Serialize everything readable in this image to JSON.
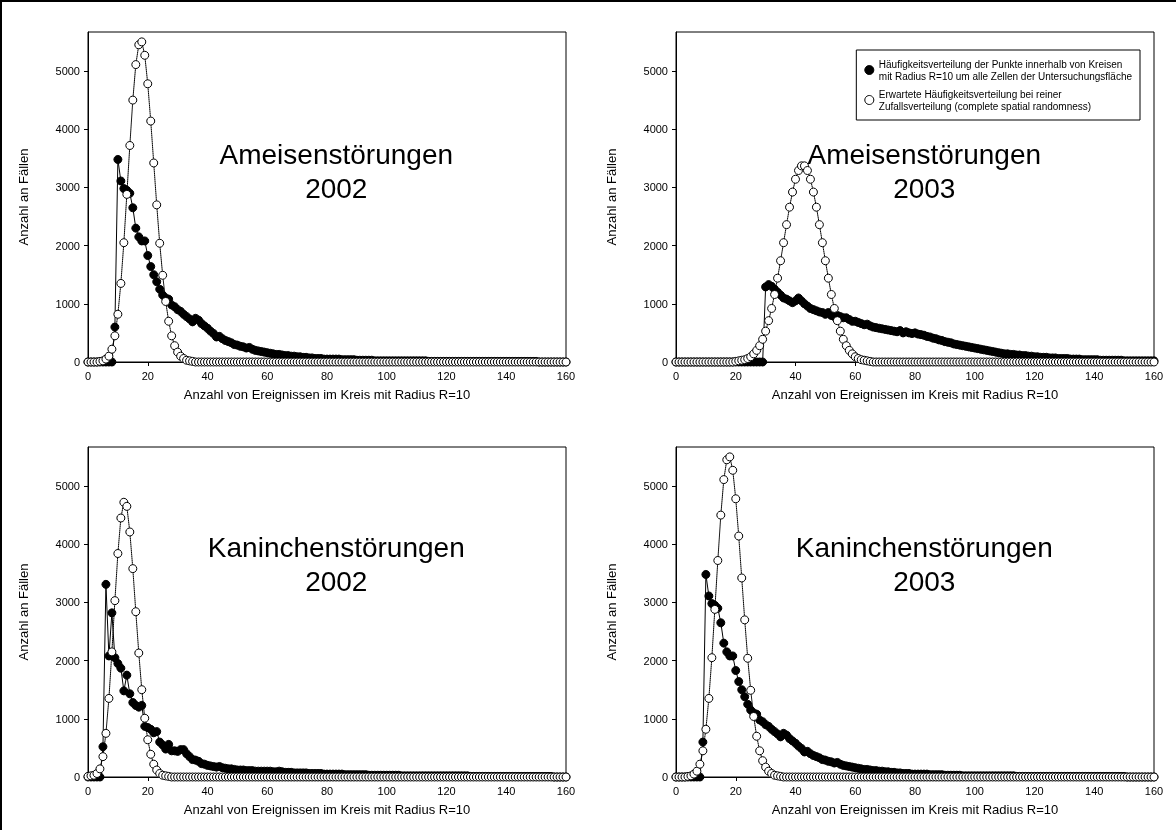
{
  "chart_data": [
    {
      "type": "line",
      "title": "Ameisenstörungen\n2002",
      "xlabel": "Anzahl von Ereignissen im Kreis mit Radius R=10",
      "ylabel": "Anzahl an Fällen",
      "xlim": [
        0,
        160
      ],
      "xticks": [
        0,
        20,
        40,
        60,
        80,
        100,
        120,
        140,
        160
      ],
      "ylim": [
        0,
        5670
      ],
      "yticks": [
        0,
        1000,
        2000,
        3000,
        4000,
        5000
      ],
      "grid": false,
      "legend": false,
      "marker": "circle",
      "x": [
        0,
        1,
        2,
        3,
        4,
        5,
        6,
        7,
        8,
        9,
        10,
        11,
        12,
        13,
        14,
        15,
        16,
        17,
        18,
        19,
        20,
        21,
        22,
        23,
        24,
        25,
        26,
        27,
        28,
        29,
        30,
        31,
        32,
        33,
        34,
        35,
        36,
        37,
        38,
        39,
        40,
        41,
        42,
        43,
        44,
        45,
        46,
        47,
        48,
        49,
        50,
        51,
        52,
        53,
        54,
        55,
        56,
        57,
        58,
        59,
        60,
        61,
        62,
        63,
        64,
        65,
        66,
        67,
        68,
        69,
        70,
        71,
        72,
        73,
        74,
        75,
        76,
        77,
        78,
        79,
        80,
        81,
        82,
        83,
        84,
        85,
        86,
        87,
        88,
        89,
        90,
        91,
        92,
        93,
        94,
        95,
        96,
        97,
        98,
        99,
        100,
        101,
        102,
        103,
        104,
        105,
        106,
        107,
        108,
        109,
        110,
        111,
        112,
        113,
        114,
        115,
        116,
        117,
        118,
        119,
        120,
        121,
        122,
        123,
        124,
        125,
        126,
        127,
        128,
        129,
        130,
        131,
        132,
        133,
        134,
        135,
        136,
        137,
        138,
        139,
        140,
        141,
        142,
        143,
        144,
        145,
        146,
        147,
        148,
        149,
        150,
        151,
        152,
        153,
        154,
        155,
        156,
        157,
        158,
        159,
        160
      ],
      "series": [
        {
          "color": "#000000",
          "line_style": "solid",
          "values": [
            0,
            0,
            0,
            0,
            0,
            0,
            0,
            0,
            0,
            600,
            3480,
            3110,
            2980,
            2950,
            2900,
            2650,
            2300,
            2150,
            2080,
            2080,
            1830,
            1640,
            1500,
            1380,
            1250,
            1150,
            1100,
            1080,
            980,
            950,
            900,
            870,
            820,
            780,
            740,
            690,
            750,
            720,
            660,
            620,
            580,
            530,
            490,
            430,
            440,
            400,
            370,
            350,
            330,
            300,
            290,
            270,
            260,
            240,
            250,
            220,
            200,
            190,
            180,
            170,
            160,
            150,
            140,
            130,
            130,
            120,
            110,
            110,
            100,
            100,
            90,
            90,
            80,
            80,
            70,
            70,
            60,
            60,
            60,
            50,
            50,
            50,
            50,
            50,
            50,
            40,
            40,
            40,
            40,
            40,
            30,
            30,
            30,
            30,
            30,
            30,
            20,
            20,
            20,
            20,
            20,
            20,
            20,
            20,
            20,
            20,
            20,
            20,
            20,
            20,
            20,
            20,
            20,
            20,
            10,
            10,
            10,
            10,
            10,
            10,
            10,
            10,
            10,
            10,
            10,
            10,
            10,
            10,
            10,
            10,
            10,
            10,
            10,
            10,
            10,
            10,
            10,
            10,
            10,
            10,
            10,
            10,
            10,
            10,
            10,
            10,
            10,
            10,
            10,
            10,
            10,
            0,
            0,
            0,
            0,
            0,
            0,
            0,
            0,
            0,
            0
          ]
        },
        {
          "color": "#ffffff",
          "line_style": "dotted",
          "values": [
            0,
            0,
            0,
            0,
            10,
            20,
            50,
            100,
            220,
            450,
            820,
            1350,
            2050,
            2880,
            3720,
            4500,
            5110,
            5450,
            5500,
            5270,
            4780,
            4140,
            3420,
            2700,
            2040,
            1490,
            1040,
            700,
            450,
            280,
            170,
            100,
            60,
            30,
            20,
            10,
            0,
            0,
            0,
            0,
            0,
            0,
            0,
            0,
            0,
            0,
            0,
            0,
            0,
            0,
            0,
            0,
            0,
            0,
            0,
            0,
            0,
            0,
            0,
            0,
            0,
            0,
            0,
            0,
            0,
            0,
            0,
            0,
            0,
            0,
            0,
            0,
            0,
            0,
            0,
            0,
            0,
            0,
            0,
            0,
            0,
            0,
            0,
            0,
            0,
            0,
            0,
            0,
            0,
            0,
            0,
            0,
            0,
            0,
            0,
            0,
            0,
            0,
            0,
            0,
            0,
            0,
            0,
            0,
            0,
            0,
            0,
            0,
            0,
            0,
            0,
            0,
            0,
            0,
            0,
            0,
            0,
            0,
            0,
            0,
            0,
            0,
            0,
            0,
            0,
            0,
            0,
            0,
            0,
            0,
            0,
            0,
            0,
            0,
            0,
            0,
            0,
            0,
            0,
            0,
            0,
            0,
            0,
            0,
            0,
            0,
            0,
            0,
            0,
            0,
            0,
            0,
            0,
            0,
            0,
            0,
            0,
            0,
            0,
            0,
            0
          ]
        }
      ]
    },
    {
      "type": "line",
      "title": "Ameisenstörungen\n2003",
      "xlabel": "Anzahl von Ereignissen im Kreis mit Radius R=10",
      "ylabel": "Anzahl an Fällen",
      "xlim": [
        0,
        160
      ],
      "xticks": [
        0,
        20,
        40,
        60,
        80,
        100,
        120,
        140,
        160
      ],
      "ylim": [
        0,
        5670
      ],
      "yticks": [
        0,
        1000,
        2000,
        3000,
        4000,
        5000
      ],
      "grid": false,
      "legend": "top right",
      "marker": "circle",
      "x": [
        0,
        1,
        2,
        3,
        4,
        5,
        6,
        7,
        8,
        9,
        10,
        11,
        12,
        13,
        14,
        15,
        16,
        17,
        18,
        19,
        20,
        21,
        22,
        23,
        24,
        25,
        26,
        27,
        28,
        29,
        30,
        31,
        32,
        33,
        34,
        35,
        36,
        37,
        38,
        39,
        40,
        41,
        42,
        43,
        44,
        45,
        46,
        47,
        48,
        49,
        50,
        51,
        52,
        53,
        54,
        55,
        56,
        57,
        58,
        59,
        60,
        61,
        62,
        63,
        64,
        65,
        66,
        67,
        68,
        69,
        70,
        71,
        72,
        73,
        74,
        75,
        76,
        77,
        78,
        79,
        80,
        81,
        82,
        83,
        84,
        85,
        86,
        87,
        88,
        89,
        90,
        91,
        92,
        93,
        94,
        95,
        96,
        97,
        98,
        99,
        100,
        101,
        102,
        103,
        104,
        105,
        106,
        107,
        108,
        109,
        110,
        111,
        112,
        113,
        114,
        115,
        116,
        117,
        118,
        119,
        120,
        121,
        122,
        123,
        124,
        125,
        126,
        127,
        128,
        129,
        130,
        131,
        132,
        133,
        134,
        135,
        136,
        137,
        138,
        139,
        140,
        141,
        142,
        143,
        144,
        145,
        146,
        147,
        148,
        149,
        150,
        151,
        152,
        153,
        154,
        155,
        156,
        157,
        158,
        159,
        160
      ],
      "series": [
        {
          "name": "Häufigkeitsverteilung der Punkte innerhalb von Kreisen\nmit Radius R=10 um alle Zellen der Untersuchungsfläche",
          "color": "#000000",
          "line_style": "solid",
          "values": [
            0,
            0,
            0,
            0,
            0,
            0,
            0,
            0,
            0,
            0,
            0,
            0,
            0,
            0,
            0,
            0,
            0,
            0,
            0,
            0,
            0,
            0,
            0,
            0,
            0,
            0,
            0,
            0,
            0,
            0,
            1290,
            1330,
            1300,
            1250,
            1200,
            1150,
            1100,
            1080,
            1050,
            1020,
            1050,
            1100,
            1050,
            1000,
            960,
            920,
            900,
            880,
            860,
            850,
            820,
            850,
            800,
            780,
            800,
            780,
            760,
            760,
            730,
            700,
            700,
            680,
            660,
            640,
            650,
            620,
            600,
            590,
            580,
            570,
            560,
            550,
            540,
            530,
            520,
            540,
            500,
            520,
            500,
            490,
            500,
            480,
            470,
            460,
            440,
            430,
            410,
            400,
            380,
            370,
            350,
            340,
            330,
            310,
            300,
            290,
            280,
            270,
            260,
            250,
            240,
            230,
            220,
            210,
            200,
            190,
            180,
            170,
            160,
            150,
            140,
            140,
            130,
            130,
            120,
            120,
            110,
            110,
            100,
            100,
            90,
            90,
            80,
            80,
            80,
            70,
            70,
            70,
            60,
            60,
            60,
            60,
            50,
            50,
            50,
            50,
            40,
            40,
            40,
            40,
            40,
            40,
            30,
            30,
            30,
            30,
            30,
            30,
            30,
            30,
            20,
            20,
            20,
            20,
            20,
            20,
            20,
            20,
            20,
            20,
            20
          ]
        },
        {
          "name": "Erwartete Häufigkeitsverteilung bei reiner\nZufallsverteilung (complete spatial randomness)",
          "color": "#ffffff",
          "line_style": "dotted",
          "values": [
            0,
            0,
            0,
            0,
            0,
            0,
            0,
            0,
            0,
            0,
            0,
            0,
            0,
            0,
            0,
            0,
            0,
            0,
            0,
            0,
            10,
            20,
            30,
            40,
            60,
            90,
            140,
            200,
            280,
            390,
            530,
            710,
            920,
            1160,
            1440,
            1740,
            2050,
            2360,
            2660,
            2920,
            3140,
            3290,
            3370,
            3370,
            3290,
            3140,
            2920,
            2660,
            2360,
            2050,
            1740,
            1440,
            1160,
            920,
            710,
            530,
            390,
            280,
            200,
            140,
            90,
            60,
            40,
            30,
            20,
            10,
            0,
            0,
            0,
            0,
            0,
            0,
            0,
            0,
            0,
            0,
            0,
            0,
            0,
            0,
            0,
            0,
            0,
            0,
            0,
            0,
            0,
            0,
            0,
            0,
            0,
            0,
            0,
            0,
            0,
            0,
            0,
            0,
            0,
            0,
            0,
            0,
            0,
            0,
            0,
            0,
            0,
            0,
            0,
            0,
            0,
            0,
            0,
            0,
            0,
            0,
            0,
            0,
            0,
            0,
            0,
            0,
            0,
            0,
            0,
            0,
            0,
            0,
            0,
            0,
            0,
            0,
            0,
            0,
            0,
            0,
            0,
            0,
            0,
            0,
            0,
            0,
            0,
            0,
            0,
            0,
            0,
            0,
            0,
            0,
            0,
            0,
            0,
            0,
            0,
            0,
            0,
            0,
            0,
            0,
            0
          ]
        }
      ]
    },
    {
      "type": "line",
      "title": "Kaninchenstörungen\n2002",
      "xlabel": "Anzahl von Ereignissen im Kreis mit Radius R=10",
      "ylabel": "Anzahl an Fällen",
      "xlim": [
        0,
        160
      ],
      "xticks": [
        0,
        20,
        40,
        60,
        80,
        100,
        120,
        140,
        160
      ],
      "ylim": [
        0,
        5670
      ],
      "yticks": [
        0,
        1000,
        2000,
        3000,
        4000,
        5000
      ],
      "grid": false,
      "legend": false,
      "marker": "circle",
      "x": [
        0,
        1,
        2,
        3,
        4,
        5,
        6,
        7,
        8,
        9,
        10,
        11,
        12,
        13,
        14,
        15,
        16,
        17,
        18,
        19,
        20,
        21,
        22,
        23,
        24,
        25,
        26,
        27,
        28,
        29,
        30,
        31,
        32,
        33,
        34,
        35,
        36,
        37,
        38,
        39,
        40,
        41,
        42,
        43,
        44,
        45,
        46,
        47,
        48,
        49,
        50,
        51,
        52,
        53,
        54,
        55,
        56,
        57,
        58,
        59,
        60,
        61,
        62,
        63,
        64,
        65,
        66,
        67,
        68,
        69,
        70,
        71,
        72,
        73,
        74,
        75,
        76,
        77,
        78,
        79,
        80,
        81,
        82,
        83,
        84,
        85,
        86,
        87,
        88,
        89,
        90,
        91,
        92,
        93,
        94,
        95,
        96,
        97,
        98,
        99,
        100,
        101,
        102,
        103,
        104,
        105,
        106,
        107,
        108,
        109,
        110,
        111,
        112,
        113,
        114,
        115,
        116,
        117,
        118,
        119,
        120,
        121,
        122,
        123,
        124,
        125,
        126,
        127,
        128,
        129,
        130,
        131,
        132,
        133,
        134,
        135,
        136,
        137,
        138,
        139,
        140,
        141,
        142,
        143,
        144,
        145,
        146,
        147,
        148,
        149,
        150,
        151,
        152,
        153,
        154,
        155,
        156,
        157,
        158,
        159,
        160
      ],
      "series": [
        {
          "color": "#000000",
          "line_style": "solid",
          "values": [
            0,
            0,
            0,
            0,
            0,
            520,
            3310,
            2080,
            2820,
            2050,
            1950,
            1870,
            1480,
            1750,
            1430,
            1280,
            1230,
            1200,
            1230,
            870,
            850,
            820,
            760,
            780,
            600,
            550,
            480,
            560,
            450,
            450,
            440,
            470,
            470,
            400,
            350,
            300,
            290,
            270,
            230,
            220,
            200,
            190,
            180,
            170,
            180,
            160,
            150,
            140,
            140,
            130,
            120,
            120,
            120,
            110,
            110,
            110,
            100,
            100,
            100,
            100,
            100,
            100,
            90,
            90,
            100,
            90,
            80,
            80,
            80,
            70,
            70,
            70,
            70,
            70,
            60,
            60,
            60,
            60,
            60,
            50,
            50,
            50,
            50,
            50,
            50,
            50,
            40,
            40,
            40,
            40,
            40,
            40,
            40,
            40,
            30,
            30,
            30,
            30,
            30,
            30,
            30,
            30,
            30,
            30,
            30,
            20,
            20,
            20,
            20,
            20,
            20,
            20,
            20,
            20,
            20,
            20,
            20,
            20,
            20,
            20,
            20,
            20,
            20,
            20,
            20,
            20,
            20,
            20,
            10,
            10,
            10,
            10,
            10,
            10,
            10,
            10,
            10,
            10,
            10,
            10,
            10,
            10,
            10,
            10,
            10,
            10,
            10,
            10,
            10,
            10,
            10,
            10,
            10,
            10,
            10,
            10,
            0,
            0,
            0,
            0,
            0
          ]
        },
        {
          "color": "#ffffff",
          "line_style": "dotted",
          "values": [
            10,
            20,
            30,
            60,
            140,
            350,
            750,
            1350,
            2150,
            3030,
            3840,
            4450,
            4720,
            4650,
            4210,
            3580,
            2840,
            2130,
            1500,
            1010,
            640,
            390,
            220,
            120,
            60,
            30,
            20,
            10,
            0,
            0,
            0,
            0,
            0,
            0,
            0,
            0,
            0,
            0,
            0,
            0,
            0,
            0,
            0,
            0,
            0,
            0,
            0,
            0,
            0,
            0,
            0,
            0,
            0,
            0,
            0,
            0,
            0,
            0,
            0,
            0,
            0,
            0,
            0,
            0,
            0,
            0,
            0,
            0,
            0,
            0,
            0,
            0,
            0,
            0,
            0,
            0,
            0,
            0,
            0,
            0,
            0,
            0,
            0,
            0,
            0,
            0,
            0,
            0,
            0,
            0,
            0,
            0,
            0,
            0,
            0,
            0,
            0,
            0,
            0,
            0,
            0,
            0,
            0,
            0,
            0,
            0,
            0,
            0,
            0,
            0,
            0,
            0,
            0,
            0,
            0,
            0,
            0,
            0,
            0,
            0,
            0,
            0,
            0,
            0,
            0,
            0,
            0,
            0,
            0,
            0,
            0,
            0,
            0,
            0,
            0,
            0,
            0,
            0,
            0,
            0,
            0,
            0,
            0,
            0,
            0,
            0,
            0,
            0,
            0,
            0,
            0,
            0,
            0,
            0,
            0,
            0,
            0,
            0,
            0,
            0,
            0
          ]
        }
      ]
    },
    {
      "type": "line",
      "title": "Kaninchenstörungen\n2003",
      "xlabel": "Anzahl von Ereignissen im Kreis mit Radius R=10",
      "ylabel": "Anzahl an Fällen",
      "xlim": [
        0,
        160
      ],
      "xticks": [
        0,
        20,
        40,
        60,
        80,
        100,
        120,
        140,
        160
      ],
      "ylim": [
        0,
        5670
      ],
      "yticks": [
        0,
        1000,
        2000,
        3000,
        4000,
        5000
      ],
      "grid": false,
      "legend": false,
      "marker": "circle",
      "x": [
        0,
        1,
        2,
        3,
        4,
        5,
        6,
        7,
        8,
        9,
        10,
        11,
        12,
        13,
        14,
        15,
        16,
        17,
        18,
        19,
        20,
        21,
        22,
        23,
        24,
        25,
        26,
        27,
        28,
        29,
        30,
        31,
        32,
        33,
        34,
        35,
        36,
        37,
        38,
        39,
        40,
        41,
        42,
        43,
        44,
        45,
        46,
        47,
        48,
        49,
        50,
        51,
        52,
        53,
        54,
        55,
        56,
        57,
        58,
        59,
        60,
        61,
        62,
        63,
        64,
        65,
        66,
        67,
        68,
        69,
        70,
        71,
        72,
        73,
        74,
        75,
        76,
        77,
        78,
        79,
        80,
        81,
        82,
        83,
        84,
        85,
        86,
        87,
        88,
        89,
        90,
        91,
        92,
        93,
        94,
        95,
        96,
        97,
        98,
        99,
        100,
        101,
        102,
        103,
        104,
        105,
        106,
        107,
        108,
        109,
        110,
        111,
        112,
        113,
        114,
        115,
        116,
        117,
        118,
        119,
        120,
        121,
        122,
        123,
        124,
        125,
        126,
        127,
        128,
        129,
        130,
        131,
        132,
        133,
        134,
        135,
        136,
        137,
        138,
        139,
        140,
        141,
        142,
        143,
        144,
        145,
        146,
        147,
        148,
        149,
        150,
        151,
        152,
        153,
        154,
        155,
        156,
        157,
        158,
        159,
        160
      ],
      "series": [
        {
          "color": "#000000",
          "line_style": "solid",
          "values": [
            0,
            0,
            0,
            0,
            0,
            0,
            0,
            0,
            0,
            600,
            3480,
            3110,
            2980,
            2950,
            2900,
            2650,
            2300,
            2150,
            2080,
            2080,
            1830,
            1640,
            1500,
            1380,
            1250,
            1150,
            1100,
            1080,
            980,
            950,
            900,
            870,
            820,
            780,
            740,
            690,
            750,
            720,
            660,
            620,
            580,
            530,
            490,
            430,
            440,
            400,
            370,
            350,
            330,
            300,
            290,
            270,
            260,
            240,
            250,
            220,
            200,
            190,
            180,
            170,
            160,
            150,
            140,
            130,
            130,
            120,
            110,
            110,
            100,
            100,
            90,
            90,
            80,
            80,
            70,
            70,
            60,
            60,
            60,
            50,
            50,
            50,
            50,
            50,
            50,
            40,
            40,
            40,
            40,
            40,
            30,
            30,
            30,
            30,
            30,
            30,
            20,
            20,
            20,
            20,
            20,
            20,
            20,
            20,
            20,
            20,
            20,
            20,
            20,
            20,
            20,
            20,
            20,
            20,
            10,
            10,
            10,
            10,
            10,
            10,
            10,
            10,
            10,
            10,
            10,
            10,
            10,
            10,
            10,
            10,
            10,
            10,
            10,
            10,
            10,
            10,
            10,
            10,
            10,
            10,
            10,
            10,
            10,
            10,
            10,
            10,
            10,
            10,
            10,
            10,
            10,
            0,
            0,
            0,
            0,
            0,
            0,
            0,
            0,
            0,
            0
          ]
        },
        {
          "color": "#ffffff",
          "line_style": "dotted",
          "values": [
            0,
            0,
            0,
            0,
            10,
            20,
            50,
            100,
            220,
            450,
            820,
            1350,
            2050,
            2880,
            3720,
            4500,
            5110,
            5450,
            5500,
            5270,
            4780,
            4140,
            3420,
            2700,
            2040,
            1490,
            1040,
            700,
            450,
            280,
            170,
            100,
            60,
            30,
            20,
            10,
            0,
            0,
            0,
            0,
            0,
            0,
            0,
            0,
            0,
            0,
            0,
            0,
            0,
            0,
            0,
            0,
            0,
            0,
            0,
            0,
            0,
            0,
            0,
            0,
            0,
            0,
            0,
            0,
            0,
            0,
            0,
            0,
            0,
            0,
            0,
            0,
            0,
            0,
            0,
            0,
            0,
            0,
            0,
            0,
            0,
            0,
            0,
            0,
            0,
            0,
            0,
            0,
            0,
            0,
            0,
            0,
            0,
            0,
            0,
            0,
            0,
            0,
            0,
            0,
            0,
            0,
            0,
            0,
            0,
            0,
            0,
            0,
            0,
            0,
            0,
            0,
            0,
            0,
            0,
            0,
            0,
            0,
            0,
            0,
            0,
            0,
            0,
            0,
            0,
            0,
            0,
            0,
            0,
            0,
            0,
            0,
            0,
            0,
            0,
            0,
            0,
            0,
            0,
            0,
            0,
            0,
            0,
            0,
            0,
            0,
            0,
            0,
            0,
            0,
            0,
            0,
            0,
            0,
            0,
            0,
            0,
            0,
            0,
            0,
            0
          ]
        }
      ]
    }
  ]
}
